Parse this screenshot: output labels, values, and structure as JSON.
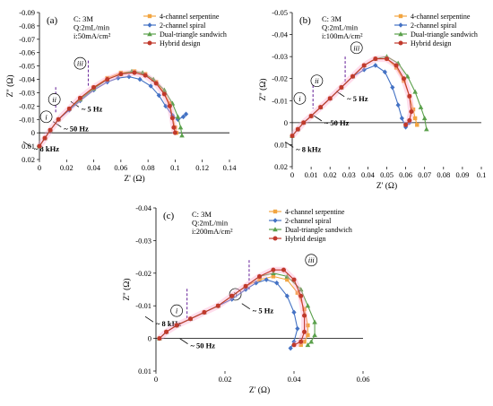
{
  "colors": {
    "axis": "#000000",
    "marker_line": "#7030a0",
    "arrow": "#000000",
    "series": [
      "#f2a541",
      "#4472c4",
      "#5aa04b",
      "#c0392b"
    ],
    "glow": [
      "#ff9ec9",
      "#7fe6ff"
    ]
  },
  "chart_data": [
    {
      "type": "scatter",
      "panel_label": "(a)",
      "conditions": [
        "C: 3M",
        "Q:2mL/min",
        "i:50mA/cm²"
      ],
      "xlabel": "Z' (Ω)",
      "ylabel": "Z'' (Ω)",
      "xlim": [
        0,
        0.14
      ],
      "ylim": [
        0.02,
        -0.09
      ],
      "xticks": [
        "0",
        "0.02",
        "0.04",
        "0.06",
        "0.08",
        "0.1",
        "0.12",
        "0.14"
      ],
      "yticks": [
        "-0.09",
        "-0.08",
        "-0.07",
        "-0.06",
        "-0.05",
        "-0.04",
        "-0.03",
        "-0.02",
        "-0.01",
        "0",
        "0.01",
        "0.02"
      ],
      "legend": [
        "4-channel serpentine",
        "2-channel spiral",
        "Dual-triangle sandwich",
        "Hybrid design"
      ],
      "legend_position": "top-right",
      "region_labels": [
        "i",
        "ii",
        "iii"
      ],
      "region_dividers_x": [
        0.012,
        0.036
      ],
      "annotations": [
        "~ 5 Hz",
        "~ 50 Hz",
        "~ 8 kHz"
      ],
      "series": [
        {
          "name": "4-channel serpentine",
          "x": [
            0.0,
            0.004,
            0.008,
            0.014,
            0.022,
            0.03,
            0.04,
            0.05,
            0.06,
            0.07,
            0.078,
            0.086,
            0.092,
            0.096,
            0.098,
            0.1,
            0.101
          ],
          "y": [
            0.01,
            0.004,
            -0.002,
            -0.01,
            -0.018,
            -0.026,
            -0.034,
            -0.041,
            -0.045,
            -0.046,
            -0.044,
            -0.038,
            -0.03,
            -0.022,
            -0.012,
            -0.004,
            0.0
          ]
        },
        {
          "name": "2-channel spiral",
          "x": [
            0.0,
            0.004,
            0.008,
            0.014,
            0.022,
            0.03,
            0.04,
            0.05,
            0.058,
            0.066,
            0.074,
            0.082,
            0.088,
            0.093,
            0.098,
            0.102,
            0.106,
            0.108
          ],
          "y": [
            0.01,
            0.004,
            -0.002,
            -0.01,
            -0.017,
            -0.024,
            -0.032,
            -0.038,
            -0.041,
            -0.042,
            -0.04,
            -0.035,
            -0.028,
            -0.02,
            -0.013,
            -0.01,
            -0.012,
            -0.014
          ]
        },
        {
          "name": "Dual-triangle sandwich",
          "x": [
            0.0,
            0.004,
            0.008,
            0.014,
            0.022,
            0.03,
            0.04,
            0.05,
            0.06,
            0.068,
            0.076,
            0.084,
            0.092,
            0.098,
            0.102,
            0.104,
            0.105
          ],
          "y": [
            0.01,
            0.004,
            -0.002,
            -0.01,
            -0.018,
            -0.025,
            -0.033,
            -0.04,
            -0.044,
            -0.046,
            -0.045,
            -0.04,
            -0.032,
            -0.022,
            -0.012,
            -0.004,
            0.002
          ]
        },
        {
          "name": "Hybrid design",
          "x": [
            0.0,
            0.004,
            0.008,
            0.014,
            0.022,
            0.03,
            0.04,
            0.05,
            0.06,
            0.07,
            0.078,
            0.086,
            0.092,
            0.096,
            0.098,
            0.099,
            0.1
          ],
          "y": [
            0.01,
            0.004,
            -0.002,
            -0.01,
            -0.018,
            -0.026,
            -0.034,
            -0.04,
            -0.044,
            -0.045,
            -0.043,
            -0.037,
            -0.029,
            -0.02,
            -0.011,
            -0.004,
            0.0
          ]
        }
      ]
    },
    {
      "type": "scatter",
      "panel_label": "(b)",
      "conditions": [
        "C: 3M",
        "Q:2mL/min",
        "i:100mA/cm²"
      ],
      "xlabel": "Z' (Ω)",
      "ylabel": "Z'' (Ω)",
      "xlim": [
        0,
        0.1
      ],
      "ylim": [
        0.02,
        -0.05
      ],
      "xticks": [
        "0",
        "0.01",
        "0.02",
        "0.03",
        "0.04",
        "0.05",
        "0.06",
        "0.07",
        "0.08",
        "0.09",
        "0.1"
      ],
      "yticks": [
        "-0.05",
        "-0.04",
        "-0.03",
        "-0.02",
        "-0.01",
        "0",
        "0.01",
        "0.02"
      ],
      "legend": [
        "4-channel serpentine",
        "2-channel spiral",
        "Dual-triangle sandwich",
        "Hybrid design"
      ],
      "legend_position": "top-right",
      "region_labels": [
        "i",
        "ii",
        "iii"
      ],
      "region_dividers_x": [
        0.011,
        0.028
      ],
      "annotations": [
        "~ 5 Hz",
        "~ 50 Hz",
        "~ 8 kHz"
      ],
      "series": [
        {
          "name": "4-channel serpentine",
          "x": [
            0.0,
            0.003,
            0.006,
            0.01,
            0.015,
            0.02,
            0.026,
            0.032,
            0.038,
            0.044,
            0.05,
            0.055,
            0.059,
            0.062,
            0.064,
            0.065,
            0.066
          ],
          "y": [
            0.006,
            0.003,
            0.0,
            -0.003,
            -0.007,
            -0.011,
            -0.016,
            -0.021,
            -0.026,
            -0.029,
            -0.029,
            -0.025,
            -0.019,
            -0.012,
            -0.006,
            -0.002,
            0.001
          ]
        },
        {
          "name": "2-channel spiral",
          "x": [
            0.0,
            0.003,
            0.006,
            0.01,
            0.015,
            0.02,
            0.026,
            0.032,
            0.038,
            0.044,
            0.049,
            0.053,
            0.056,
            0.058,
            0.06,
            0.062
          ],
          "y": [
            0.006,
            0.003,
            0.0,
            -0.003,
            -0.007,
            -0.011,
            -0.016,
            -0.021,
            -0.024,
            -0.026,
            -0.023,
            -0.016,
            -0.008,
            -0.002,
            0.002,
            0.0
          ]
        },
        {
          "name": "Dual-triangle sandwich",
          "x": [
            0.0,
            0.003,
            0.006,
            0.01,
            0.015,
            0.02,
            0.026,
            0.032,
            0.038,
            0.044,
            0.05,
            0.056,
            0.061,
            0.065,
            0.068,
            0.07,
            0.071
          ],
          "y": [
            0.006,
            0.003,
            0.0,
            -0.003,
            -0.007,
            -0.011,
            -0.016,
            -0.021,
            -0.026,
            -0.029,
            -0.03,
            -0.027,
            -0.021,
            -0.014,
            -0.007,
            -0.002,
            0.003
          ]
        },
        {
          "name": "Hybrid design",
          "x": [
            0.0,
            0.003,
            0.006,
            0.01,
            0.015,
            0.02,
            0.026,
            0.032,
            0.038,
            0.044,
            0.05,
            0.055,
            0.059,
            0.062,
            0.063,
            0.062,
            0.06
          ],
          "y": [
            0.006,
            0.003,
            0.0,
            -0.003,
            -0.007,
            -0.011,
            -0.016,
            -0.021,
            -0.026,
            -0.029,
            -0.029,
            -0.026,
            -0.02,
            -0.012,
            -0.005,
            -0.001,
            0.001
          ]
        }
      ]
    },
    {
      "type": "scatter",
      "panel_label": "(c)",
      "conditions": [
        "C: 3M",
        "Q:2mL/min",
        "i:200mA/cm²"
      ],
      "xlabel": "Z' (Ω)",
      "ylabel": "Z'' (Ω)",
      "xlim": [
        0,
        0.06
      ],
      "ylim": [
        0.01,
        -0.04
      ],
      "xticks": [
        "0",
        "0.02",
        "0.04",
        "0.06"
      ],
      "yticks": [
        "-0.04",
        "-0.03",
        "-0.02",
        "-0.01",
        "0",
        "0.01"
      ],
      "legend": [
        "4-channel serpentine",
        "2-channel spiral",
        "Dual-triangle sandwich",
        "Hybrid design"
      ],
      "legend_position": "top-right",
      "region_labels": [
        "i",
        "ii",
        "iii"
      ],
      "region_dividers_x": [
        0.009,
        0.027
      ],
      "annotations": [
        "~ 5 Hz",
        "~ 50 Hz",
        "~ 8 kHz"
      ],
      "series": [
        {
          "name": "4-channel serpentine",
          "x": [
            0.001,
            0.003,
            0.006,
            0.01,
            0.014,
            0.018,
            0.022,
            0.026,
            0.03,
            0.034,
            0.038,
            0.041,
            0.043,
            0.044,
            0.044,
            0.043,
            0.042
          ],
          "y": [
            0.0,
            -0.002,
            -0.004,
            -0.006,
            -0.008,
            -0.01,
            -0.013,
            -0.016,
            -0.018,
            -0.019,
            -0.018,
            -0.014,
            -0.009,
            -0.004,
            -0.001,
            0.001,
            0.002
          ]
        },
        {
          "name": "2-channel spiral",
          "x": [
            0.001,
            0.003,
            0.006,
            0.01,
            0.014,
            0.018,
            0.022,
            0.026,
            0.029,
            0.032,
            0.035,
            0.038,
            0.04,
            0.041,
            0.04,
            0.039
          ],
          "y": [
            0.0,
            -0.002,
            -0.004,
            -0.006,
            -0.008,
            -0.01,
            -0.012,
            -0.015,
            -0.017,
            -0.018,
            -0.017,
            -0.013,
            -0.008,
            -0.003,
            0.001,
            0.003
          ]
        },
        {
          "name": "Dual-triangle sandwich",
          "x": [
            0.001,
            0.003,
            0.006,
            0.01,
            0.014,
            0.018,
            0.022,
            0.026,
            0.03,
            0.034,
            0.038,
            0.042,
            0.044,
            0.046,
            0.046,
            0.045,
            0.044
          ],
          "y": [
            0.0,
            -0.002,
            -0.004,
            -0.006,
            -0.008,
            -0.01,
            -0.013,
            -0.016,
            -0.019,
            -0.02,
            -0.019,
            -0.015,
            -0.01,
            -0.005,
            -0.001,
            0.001,
            0.002
          ]
        },
        {
          "name": "Hybrid design",
          "x": [
            0.001,
            0.003,
            0.006,
            0.01,
            0.014,
            0.018,
            0.022,
            0.026,
            0.03,
            0.034,
            0.037,
            0.04,
            0.042,
            0.043,
            0.043,
            0.042,
            0.04
          ],
          "y": [
            0.0,
            -0.002,
            -0.004,
            -0.006,
            -0.008,
            -0.01,
            -0.013,
            -0.016,
            -0.019,
            -0.021,
            -0.021,
            -0.018,
            -0.013,
            -0.007,
            -0.002,
            0.001,
            0.002
          ]
        }
      ]
    }
  ]
}
